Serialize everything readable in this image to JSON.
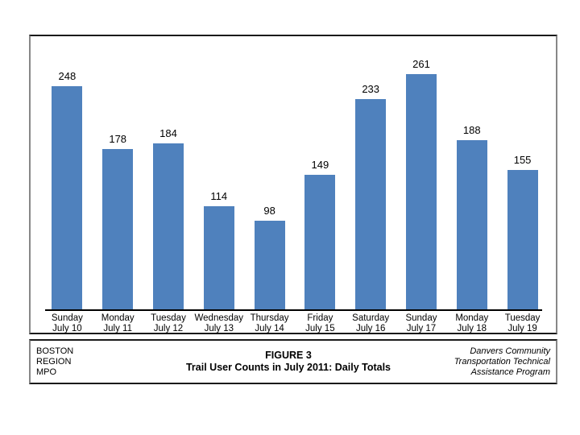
{
  "chart_data": {
    "type": "bar",
    "title": "Trail User Counts in July 2011: Daily Totals",
    "categories": [
      {
        "day": "Sunday",
        "date": "July 10"
      },
      {
        "day": "Monday",
        "date": "July 11"
      },
      {
        "day": "Tuesday",
        "date": "July 12"
      },
      {
        "day": "Wednesday",
        "date": "July 13"
      },
      {
        "day": "Thursday",
        "date": "July 14"
      },
      {
        "day": "Friday",
        "date": "July 15"
      },
      {
        "day": "Saturday",
        "date": "July 16"
      },
      {
        "day": "Sunday",
        "date": "July 17"
      },
      {
        "day": "Monday",
        "date": "July 18"
      },
      {
        "day": "Tuesday",
        "date": "July 19"
      }
    ],
    "values": [
      248,
      178,
      184,
      114,
      98,
      149,
      233,
      261,
      188,
      155
    ],
    "bar_color": "#4F81BD",
    "axis_line_color": "#000000",
    "value_labels_shown": true,
    "y_axis_shown": false,
    "grid": "off",
    "legend": "none"
  },
  "footer": {
    "left_lines": [
      "BOSTON",
      "REGION",
      "MPO"
    ],
    "center_lines": [
      "FIGURE 3",
      "Trail User Counts in July 2011: Daily Totals"
    ],
    "right_lines": [
      "Danvers Community",
      "Transportation Technical",
      "Assistance Program"
    ]
  }
}
